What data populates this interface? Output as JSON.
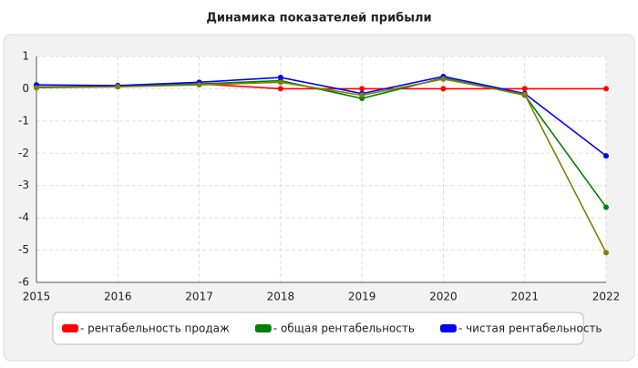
{
  "chart_data": {
    "type": "line",
    "title": "Динамика показателей прибыли",
    "x": [
      2015,
      2016,
      2017,
      2018,
      2019,
      2020,
      2021,
      2022
    ],
    "series": [
      {
        "name": "- рентабельность продаж",
        "color": "#ff0000",
        "values": [
          0.05,
          0.08,
          0.15,
          0,
          0,
          0,
          0,
          0
        ]
      },
      {
        "name": "- общая рентабельность",
        "color": "#008000",
        "values": [
          0.05,
          0.07,
          0.15,
          0.25,
          -0.3,
          0.33,
          -0.2,
          -3.67
        ]
      },
      {
        "name": "- чистая рентабельность",
        "color": "#0000ff",
        "values": [
          0.12,
          0.1,
          0.2,
          0.35,
          -0.15,
          0.38,
          -0.15,
          -2.08
        ]
      },
      {
        "color": "#808000",
        "values": [
          0.03,
          0.06,
          0.12,
          0.2,
          -0.2,
          0.3,
          -0.18,
          -5.08
        ]
      }
    ],
    "xlim": [
      2015,
      2022
    ],
    "xticks": [
      2015,
      2016,
      2017,
      2018,
      2019,
      2020,
      2021,
      2022
    ],
    "ylim": [
      -6,
      1
    ],
    "yticks": [
      1,
      0,
      -1,
      -2,
      -3,
      -4,
      -5,
      -6
    ],
    "grid": true,
    "legend": "bottom"
  }
}
